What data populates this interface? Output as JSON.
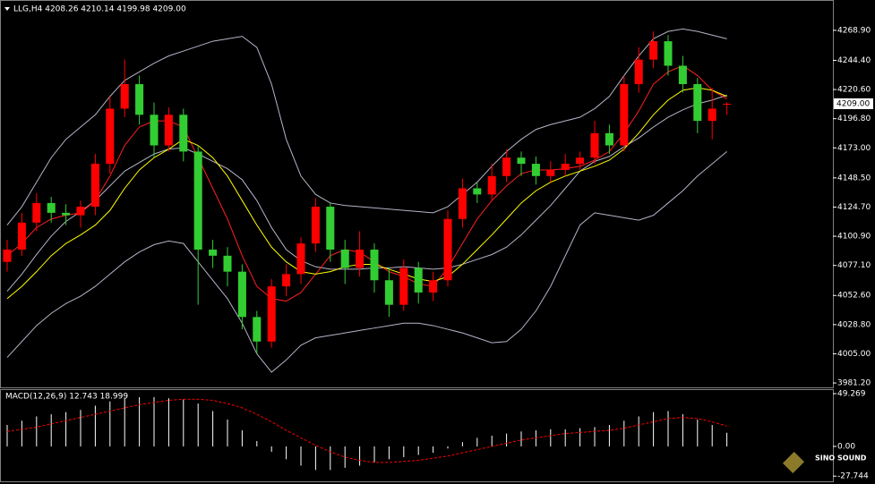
{
  "chart_data": [
    {
      "type": "candlestick",
      "title": "LLG,H4  4208.26 4210.14 4199.98 4209.00",
      "ylim": [
        3977.6,
        4292.9
      ],
      "yticks": [
        {
          "value": 4268.9,
          "label": "4268.90"
        },
        {
          "value": 4244.4,
          "label": "4244.40"
        },
        {
          "value": 4220.6,
          "label": "4220.60"
        },
        {
          "value": 4196.8,
          "label": "4196.80"
        },
        {
          "value": 4173,
          "label": "4173.00"
        },
        {
          "value": 4148.5,
          "label": "4148.50"
        },
        {
          "value": 4124.7,
          "label": "4124.70"
        },
        {
          "value": 4100.9,
          "label": "4100.90"
        },
        {
          "value": 4077.1,
          "label": "4077.10"
        },
        {
          "value": 4052.6,
          "label": "4052.60"
        },
        {
          "value": 4028.8,
          "label": "4028.80"
        },
        {
          "value": 4005,
          "label": "4005.00"
        },
        {
          "value": 3981.2,
          "label": "3981.20"
        }
      ],
      "last_price": {
        "value": 4209,
        "label": "4209.00"
      },
      "up_color": "#ff0000",
      "down_color": "#32cd32",
      "open": [
        4080,
        4090,
        4112,
        4128,
        4120,
        4118,
        4125,
        4160,
        4205,
        4225,
        4200,
        4175,
        4200,
        4170,
        4090,
        4085,
        4072,
        4035,
        4015,
        4060,
        4070,
        4095,
        4125,
        4090,
        4075,
        4090,
        4065,
        4045,
        4075,
        4055,
        4065,
        4115,
        4140,
        4135,
        4150,
        4165,
        4160,
        4150,
        4155,
        4160,
        4165,
        4185,
        4175,
        4225,
        4245,
        4260,
        4240,
        4225,
        4195,
        4208.26
      ],
      "high": [
        4098,
        4120,
        4136,
        4133,
        4127,
        4130,
        4168,
        4215,
        4245,
        4232,
        4210,
        4206,
        4205,
        4175,
        4098,
        4092,
        4078,
        4040,
        4066,
        4078,
        4100,
        4132,
        4128,
        4098,
        4105,
        4095,
        4075,
        4082,
        4080,
        4072,
        4122,
        4148,
        4145,
        4160,
        4172,
        4170,
        4166,
        4162,
        4168,
        4170,
        4195,
        4192,
        4232,
        4255,
        4268,
        4265,
        4248,
        4230,
        4222,
        4210.14
      ],
      "low": [
        4072,
        4085,
        4105,
        4112,
        4110,
        4108,
        4118,
        4152,
        4198,
        4192,
        4165,
        4170,
        4162,
        4045,
        4075,
        4060,
        4025,
        4005,
        4010,
        4052,
        4062,
        4088,
        4080,
        4062,
        4068,
        4055,
        4035,
        4040,
        4046,
        4048,
        4060,
        4108,
        4128,
        4130,
        4145,
        4150,
        4143,
        4145,
        4150,
        4155,
        4160,
        4168,
        4170,
        4218,
        4238,
        4232,
        4218,
        4185,
        4180,
        4199.98
      ],
      "close": [
        4090,
        4112,
        4128,
        4120,
        4118,
        4125,
        4160,
        4205,
        4225,
        4200,
        4175,
        4200,
        4170,
        4090,
        4085,
        4072,
        4035,
        4015,
        4060,
        4070,
        4095,
        4125,
        4090,
        4075,
        4090,
        4065,
        4045,
        4075,
        4055,
        4065,
        4115,
        4140,
        4135,
        4150,
        4165,
        4160,
        4150,
        4155,
        4160,
        4165,
        4185,
        4175,
        4225,
        4245,
        4260,
        4240,
        4225,
        4195,
        4205,
        4209
      ],
      "lines": [
        {
          "color": "#b4b4c8",
          "values": [
            4110,
            4125,
            4145,
            4165,
            4180,
            4190,
            4200,
            4215,
            4228,
            4235,
            4242,
            4248,
            4252,
            4256,
            4260,
            4262,
            4264,
            4255,
            4225,
            4180,
            4150,
            4135,
            4128,
            4126,
            4125,
            4124,
            4123,
            4122,
            4121,
            4120,
            4125,
            4135,
            4145,
            4158,
            4170,
            4180,
            4188,
            4192,
            4195,
            4198,
            4205,
            4215,
            4232,
            4248,
            4262,
            4268,
            4270,
            4268,
            4265,
            4262
          ]
        },
        {
          "color": "#b4b4c8",
          "values": [
            4056,
            4070,
            4086,
            4101,
            4113,
            4121,
            4130,
            4142,
            4154,
            4161,
            4168,
            4172,
            4173,
            4168,
            4162,
            4156,
            4147,
            4130,
            4108,
            4090,
            4081,
            4076,
            4074,
            4074,
            4074,
            4075,
            4075,
            4076,
            4075,
            4074,
            4075,
            4078,
            4082,
            4086,
            4092,
            4102,
            4114,
            4126,
            4140,
            4154,
            4162,
            4166,
            4174,
            4181,
            4190,
            4198,
            4204,
            4209,
            4212,
            4216
          ]
        },
        {
          "color": "#b4b4c8",
          "values": [
            4002,
            4015,
            4028,
            4038,
            4046,
            4052,
            4060,
            4070,
            4080,
            4088,
            4094,
            4097,
            4095,
            4080,
            4065,
            4050,
            4030,
            4005,
            3990,
            4000,
            4012,
            4018,
            4020,
            4022,
            4024,
            4026,
            4028,
            4030,
            4030,
            4028,
            4025,
            4022,
            4018,
            4014,
            4015,
            4025,
            4040,
            4060,
            4085,
            4110,
            4120,
            4118,
            4116,
            4114,
            4118,
            4128,
            4138,
            4150,
            4160,
            4170
          ]
        },
        {
          "color": "#ff2020",
          "values": [
            4085,
            4095,
            4108,
            4115,
            4118,
            4120,
            4130,
            4150,
            4175,
            4190,
            4195,
            4195,
            4190,
            4165,
            4140,
            4115,
            4085,
            4060,
            4050,
            4048,
            4055,
            4070,
            4085,
            4090,
            4088,
            4080,
            4072,
            4068,
            4062,
            4060,
            4075,
            4095,
            4115,
            4130,
            4142,
            4152,
            4155,
            4155,
            4156,
            4158,
            4163,
            4170,
            4185,
            4203,
            4225,
            4235,
            4240,
            4232,
            4220,
            4213
          ]
        },
        {
          "color": "#ffff00",
          "values": [
            4050,
            4060,
            4072,
            4085,
            4095,
            4102,
            4110,
            4122,
            4140,
            4155,
            4165,
            4172,
            4180,
            4175,
            4165,
            4150,
            4130,
            4110,
            4092,
            4080,
            4072,
            4070,
            4072,
            4076,
            4078,
            4078,
            4074,
            4070,
            4066,
            4064,
            4068,
            4078,
            4090,
            4102,
            4115,
            4128,
            4138,
            4145,
            4150,
            4154,
            4158,
            4163,
            4172,
            4185,
            4200,
            4212,
            4220,
            4222,
            4220,
            4215
          ]
        }
      ]
    },
    {
      "type": "bar",
      "title": "MACD(12,26,9) 12.743 18.999",
      "ylim": [
        -32.6,
        52.6
      ],
      "yticks": [
        49.269,
        {
          "value": 0,
          "label": "0.00"
        },
        -27.744
      ],
      "series": [
        {
          "type": "bar",
          "color": "#ffffff",
          "values": [
            20,
            24,
            28,
            30,
            32,
            34,
            38,
            42,
            45,
            46,
            46,
            45,
            44,
            40,
            33,
            25,
            15,
            5,
            -5,
            -12,
            -18,
            -22,
            -22,
            -20,
            -18,
            -15,
            -12,
            -10,
            -8,
            -6,
            -2,
            4,
            8,
            10,
            12,
            14,
            15,
            16,
            16,
            17,
            18,
            20,
            24,
            28,
            32,
            33,
            30,
            25,
            20,
            12.743
          ]
        },
        {
          "type": "line",
          "color": "#ff0000",
          "dash": true,
          "values": [
            14,
            16,
            18,
            21,
            24,
            27,
            30,
            33,
            36,
            39,
            41,
            43,
            44,
            44,
            43,
            40,
            36,
            30,
            23,
            15,
            8,
            1,
            -5,
            -10,
            -13,
            -15,
            -15,
            -14,
            -13,
            -11,
            -9,
            -6,
            -3,
            0,
            3,
            6,
            8,
            10,
            12,
            13,
            14,
            15,
            17,
            20,
            23,
            26,
            27,
            26,
            23,
            18.999
          ]
        }
      ]
    }
  ],
  "watermark": "SINO SOUND"
}
